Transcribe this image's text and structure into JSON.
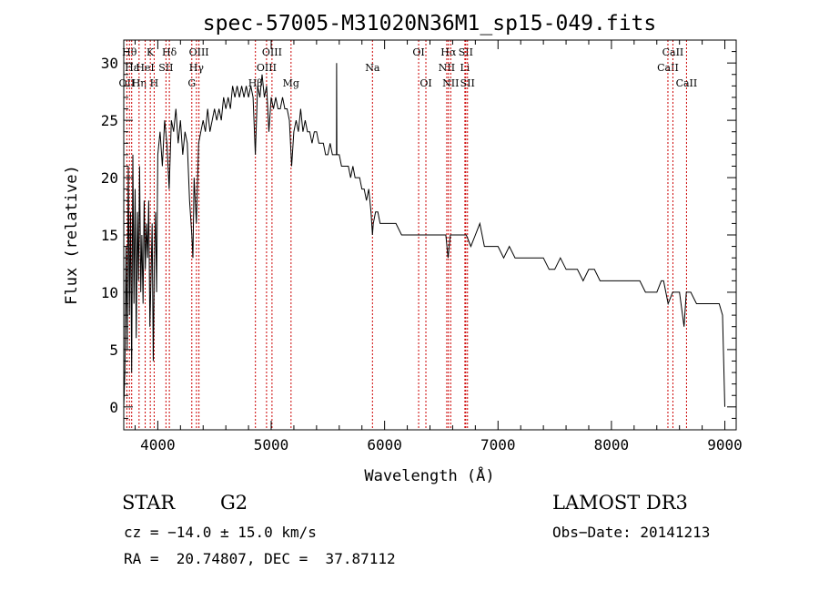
{
  "chart_data": {
    "type": "line",
    "title": "spec-57005-M31020N36M1_sp15-049.fits",
    "xlabel": "Wavelength (Å)",
    "ylabel": "Flux (relative)",
    "xlim": [
      3700,
      9100
    ],
    "ylim": [
      -2,
      32
    ],
    "x_ticks": [
      4000,
      5000,
      6000,
      7000,
      8000,
      9000
    ],
    "y_ticks": [
      0,
      5,
      10,
      15,
      20,
      25,
      30
    ],
    "grid": false,
    "series": [
      {
        "name": "flux",
        "points": [
          [
            3700,
            0
          ],
          [
            3710,
            3
          ],
          [
            3720,
            14
          ],
          [
            3730,
            5
          ],
          [
            3740,
            21
          ],
          [
            3750,
            8
          ],
          [
            3760,
            17
          ],
          [
            3770,
            3
          ],
          [
            3780,
            22
          ],
          [
            3790,
            9
          ],
          [
            3800,
            19
          ],
          [
            3810,
            6
          ],
          [
            3820,
            17
          ],
          [
            3830,
            11
          ],
          [
            3840,
            21
          ],
          [
            3850,
            10
          ],
          [
            3860,
            15
          ],
          [
            3870,
            9
          ],
          [
            3880,
            18
          ],
          [
            3890,
            12
          ],
          [
            3900,
            16
          ],
          [
            3910,
            13
          ],
          [
            3920,
            18
          ],
          [
            3930,
            7
          ],
          [
            3940,
            11
          ],
          [
            3950,
            16
          ],
          [
            3960,
            4
          ],
          [
            3970,
            13
          ],
          [
            3980,
            17
          ],
          [
            3990,
            10
          ],
          [
            4000,
            22
          ],
          [
            4020,
            24
          ],
          [
            4040,
            21
          ],
          [
            4060,
            25
          ],
          [
            4080,
            23
          ],
          [
            4100,
            19
          ],
          [
            4120,
            25
          ],
          [
            4140,
            24
          ],
          [
            4160,
            26
          ],
          [
            4180,
            23
          ],
          [
            4200,
            25
          ],
          [
            4220,
            22
          ],
          [
            4240,
            24
          ],
          [
            4260,
            23
          ],
          [
            4280,
            18
          ],
          [
            4300,
            15
          ],
          [
            4310,
            13
          ],
          [
            4320,
            20
          ],
          [
            4340,
            16
          ],
          [
            4360,
            23
          ],
          [
            4380,
            24
          ],
          [
            4400,
            25
          ],
          [
            4420,
            24
          ],
          [
            4440,
            26
          ],
          [
            4460,
            24
          ],
          [
            4480,
            25
          ],
          [
            4500,
            26
          ],
          [
            4520,
            25
          ],
          [
            4540,
            26
          ],
          [
            4560,
            25
          ],
          [
            4580,
            27
          ],
          [
            4600,
            26
          ],
          [
            4620,
            27
          ],
          [
            4640,
            26
          ],
          [
            4660,
            28
          ],
          [
            4680,
            27
          ],
          [
            4700,
            28
          ],
          [
            4720,
            27
          ],
          [
            4740,
            28
          ],
          [
            4760,
            27
          ],
          [
            4780,
            28
          ],
          [
            4800,
            27
          ],
          [
            4820,
            28
          ],
          [
            4840,
            27
          ],
          [
            4860,
            22
          ],
          [
            4880,
            28
          ],
          [
            4900,
            27
          ],
          [
            4920,
            29
          ],
          [
            4940,
            27
          ],
          [
            4960,
            28
          ],
          [
            4980,
            24
          ],
          [
            5000,
            27
          ],
          [
            5020,
            26
          ],
          [
            5040,
            27
          ],
          [
            5060,
            26
          ],
          [
            5080,
            26
          ],
          [
            5100,
            27
          ],
          [
            5120,
            26
          ],
          [
            5140,
            26
          ],
          [
            5160,
            25
          ],
          [
            5180,
            21
          ],
          [
            5200,
            24
          ],
          [
            5220,
            25
          ],
          [
            5240,
            24
          ],
          [
            5260,
            26
          ],
          [
            5280,
            24
          ],
          [
            5300,
            25
          ],
          [
            5320,
            24
          ],
          [
            5340,
            24
          ],
          [
            5360,
            23
          ],
          [
            5380,
            24
          ],
          [
            5400,
            24
          ],
          [
            5420,
            23
          ],
          [
            5440,
            23
          ],
          [
            5460,
            23
          ],
          [
            5480,
            22
          ],
          [
            5500,
            22
          ],
          [
            5520,
            23
          ],
          [
            5540,
            22
          ],
          [
            5560,
            22
          ],
          [
            5575,
            22
          ],
          [
            5577,
            30
          ],
          [
            5579,
            22
          ],
          [
            5600,
            22
          ],
          [
            5620,
            21
          ],
          [
            5640,
            21
          ],
          [
            5660,
            21
          ],
          [
            5680,
            21
          ],
          [
            5700,
            20
          ],
          [
            5720,
            21
          ],
          [
            5740,
            20
          ],
          [
            5760,
            20
          ],
          [
            5780,
            20
          ],
          [
            5800,
            19
          ],
          [
            5820,
            19
          ],
          [
            5840,
            18
          ],
          [
            5860,
            19
          ],
          [
            5880,
            17
          ],
          [
            5893,
            15
          ],
          [
            5900,
            16
          ],
          [
            5920,
            17
          ],
          [
            5940,
            17
          ],
          [
            5960,
            16
          ],
          [
            5980,
            16
          ],
          [
            6000,
            16
          ],
          [
            6050,
            16
          ],
          [
            6100,
            16
          ],
          [
            6150,
            15
          ],
          [
            6200,
            15
          ],
          [
            6250,
            15
          ],
          [
            6300,
            15
          ],
          [
            6350,
            15
          ],
          [
            6400,
            15
          ],
          [
            6450,
            15
          ],
          [
            6500,
            15
          ],
          [
            6540,
            15
          ],
          [
            6560,
            13
          ],
          [
            6580,
            15
          ],
          [
            6600,
            15
          ],
          [
            6650,
            15
          ],
          [
            6700,
            15
          ],
          [
            6720,
            15
          ],
          [
            6760,
            14
          ],
          [
            6800,
            15
          ],
          [
            6840,
            16
          ],
          [
            6880,
            14
          ],
          [
            6920,
            14
          ],
          [
            6960,
            14
          ],
          [
            7000,
            14
          ],
          [
            7050,
            13
          ],
          [
            7100,
            14
          ],
          [
            7150,
            13
          ],
          [
            7200,
            13
          ],
          [
            7250,
            13
          ],
          [
            7300,
            13
          ],
          [
            7350,
            13
          ],
          [
            7400,
            13
          ],
          [
            7450,
            12
          ],
          [
            7500,
            12
          ],
          [
            7550,
            13
          ],
          [
            7600,
            12
          ],
          [
            7650,
            12
          ],
          [
            7700,
            12
          ],
          [
            7750,
            11
          ],
          [
            7800,
            12
          ],
          [
            7850,
            12
          ],
          [
            7900,
            11
          ],
          [
            7950,
            11
          ],
          [
            8000,
            11
          ],
          [
            8050,
            11
          ],
          [
            8100,
            11
          ],
          [
            8150,
            11
          ],
          [
            8200,
            11
          ],
          [
            8250,
            11
          ],
          [
            8300,
            10
          ],
          [
            8350,
            10
          ],
          [
            8400,
            10
          ],
          [
            8440,
            11
          ],
          [
            8460,
            11
          ],
          [
            8500,
            9
          ],
          [
            8540,
            10
          ],
          [
            8600,
            10
          ],
          [
            8640,
            7
          ],
          [
            8660,
            10
          ],
          [
            8700,
            10
          ],
          [
            8750,
            9
          ],
          [
            8800,
            9
          ],
          [
            8850,
            9
          ],
          [
            8900,
            9
          ],
          [
            8950,
            9
          ],
          [
            8980,
            8
          ],
          [
            9000,
            0
          ]
        ]
      }
    ],
    "line_markers": [
      {
        "wavelength": 3727,
        "label": "OII",
        "row": 3
      },
      {
        "wavelength": 3750,
        "label": "Hθ",
        "row": 1
      },
      {
        "wavelength": 3770,
        "label": "Hε",
        "row": 2
      },
      {
        "wavelength": 3835,
        "label": "Hη",
        "row": 3
      },
      {
        "wavelength": 3889,
        "label": "HeI",
        "row": 2
      },
      {
        "wavelength": 3934,
        "label": "K",
        "row": 1
      },
      {
        "wavelength": 3968,
        "label": "H",
        "row": 3
      },
      {
        "wavelength": 4072,
        "label": "SII",
        "row": 2
      },
      {
        "wavelength": 4102,
        "label": "Hδ",
        "row": 1
      },
      {
        "wavelength": 4300,
        "label": "G",
        "row": 3
      },
      {
        "wavelength": 4341,
        "label": "Hγ",
        "row": 2
      },
      {
        "wavelength": 4363,
        "label": "OIII",
        "row": 1
      },
      {
        "wavelength": 4861,
        "label": "Hβ",
        "row": 3
      },
      {
        "wavelength": 4959,
        "label": "OIII",
        "row": 2
      },
      {
        "wavelength": 5007,
        "label": "OIII",
        "row": 1
      },
      {
        "wavelength": 5175,
        "label": "Mg",
        "row": 3
      },
      {
        "wavelength": 5893,
        "label": "Na",
        "row": 2
      },
      {
        "wavelength": 6300,
        "label": "OI",
        "row": 1
      },
      {
        "wavelength": 6364,
        "label": "OI",
        "row": 3
      },
      {
        "wavelength": 6548,
        "label": "NII",
        "row": 2
      },
      {
        "wavelength": 6563,
        "label": "Hα",
        "row": 1
      },
      {
        "wavelength": 6583,
        "label": "NII",
        "row": 3
      },
      {
        "wavelength": 6708,
        "label": "Li",
        "row": 2
      },
      {
        "wavelength": 6716,
        "label": "SII",
        "row": 1
      },
      {
        "wavelength": 6731,
        "label": "SII",
        "row": 3
      },
      {
        "wavelength": 8498,
        "label": "CaII",
        "row": 2
      },
      {
        "wavelength": 8542,
        "label": "CaII",
        "row": 1
      },
      {
        "wavelength": 8662,
        "label": "CaII",
        "row": 3
      }
    ],
    "colors": {
      "line": "#000000",
      "marker": "#cc0000",
      "axes": "#000000"
    }
  },
  "info": {
    "object_class": "STAR",
    "subclass": "G2",
    "survey": "LAMOST DR3",
    "cz": "cz = −14.0 ± 15.0 km/s",
    "obs_date": "Obs−Date: 20141213",
    "coords": "RA =  20.74807, DEC =  37.87112"
  }
}
